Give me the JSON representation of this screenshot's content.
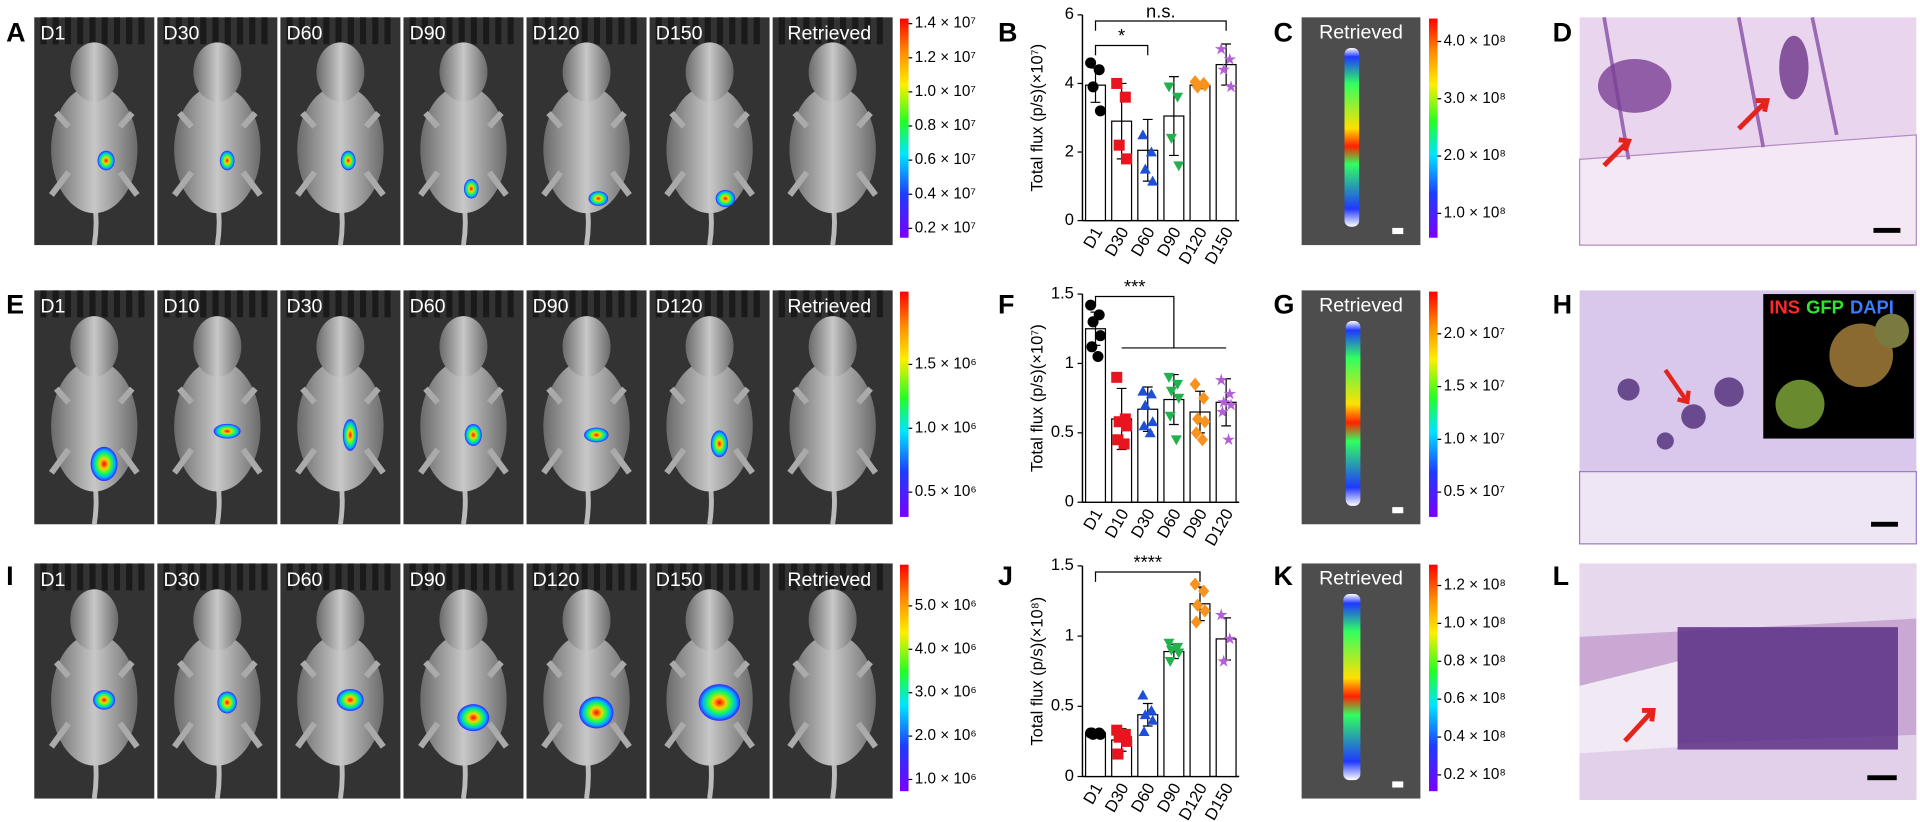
{
  "panel_letters": [
    "A",
    "B",
    "C",
    "D",
    "E",
    "F",
    "G",
    "H",
    "I",
    "J",
    "K",
    "L"
  ],
  "imaging_rows": [
    {
      "labels": [
        "D1",
        "D30",
        "D60",
        "D90",
        "D120",
        "D150",
        "Retrieved"
      ],
      "colorbar": {
        "clim": [
          1450000,
          14300000
        ],
        "ticks": [
          {
            "value": 14000000,
            "label": "1.4 × 10⁷"
          },
          {
            "value": 12000000,
            "label": "1.2 × 10⁷"
          },
          {
            "value": 10000000,
            "label": "1.0 × 10⁷"
          },
          {
            "value": 8000000,
            "label": "0.8 × 10⁷"
          },
          {
            "value": 6000000,
            "label": "0.6 × 10⁷"
          },
          {
            "value": 4000000,
            "label": "0.4 × 10⁷"
          },
          {
            "value": 2000000,
            "label": "0.2 × 10⁷"
          }
        ]
      }
    },
    {
      "labels": [
        "D1",
        "D10",
        "D30",
        "D60",
        "D90",
        "D120",
        "Retrieved"
      ],
      "colorbar": {
        "clim": [
          306000,
          2070000
        ],
        "ticks": [
          {
            "value": 1500000,
            "label": "1.5 × 10⁶"
          },
          {
            "value": 1000000,
            "label": "1.0 × 10⁶"
          },
          {
            "value": 500000,
            "label": "0.5 × 10⁶"
          }
        ]
      }
    },
    {
      "labels": [
        "D1",
        "D30",
        "D60",
        "D90",
        "D120",
        "D150",
        "Retrieved"
      ],
      "colorbar": {
        "clim": [
          730000,
          5950000
        ],
        "ticks": [
          {
            "value": 5000000,
            "label": "5.0 × 10⁶"
          },
          {
            "value": 4000000,
            "label": "4.0 × 10⁶"
          },
          {
            "value": 3000000,
            "label": "3.0 × 10⁶"
          },
          {
            "value": 2000000,
            "label": "2.0 × 10⁶"
          },
          {
            "value": 1000000,
            "label": "1.0 × 10⁶"
          }
        ]
      }
    }
  ],
  "retrieved_panels": [
    {
      "label": "Retrieved",
      "colorbar": {
        "clim": [
          57500000,
          440000000
        ],
        "ticks": [
          {
            "value": 400000000,
            "label": "4.0 × 10⁸"
          },
          {
            "value": 300000000,
            "label": "3.0 × 10⁸"
          },
          {
            "value": 200000000,
            "label": "2.0 × 10⁸"
          },
          {
            "value": 100000000,
            "label": "1.0 × 10⁸"
          }
        ]
      }
    },
    {
      "label": "Retrieved",
      "colorbar": {
        "clim": [
          2650000,
          24000000
        ],
        "ticks": [
          {
            "value": 20000000,
            "label": "2.0 × 10⁷"
          },
          {
            "value": 15000000,
            "label": "1.5 × 10⁷"
          },
          {
            "value": 10000000,
            "label": "1.0 × 10⁷"
          },
          {
            "value": 5000000,
            "label": "0.5 × 10⁷"
          }
        ]
      }
    },
    {
      "label": "Retrieved",
      "colorbar": {
        "clim": [
          11400000,
          131000000
        ],
        "ticks": [
          {
            "value": 120000000,
            "label": "1.2 × 10⁸"
          },
          {
            "value": 100000000,
            "label": "1.0 × 10⁸"
          },
          {
            "value": 80000000,
            "label": "0.8 × 10⁸"
          },
          {
            "value": 60000000,
            "label": "0.6 × 10⁸"
          },
          {
            "value": 40000000,
            "label": "0.4 × 10⁸"
          },
          {
            "value": 20000000,
            "label": "0.2 × 10⁸"
          }
        ]
      }
    }
  ],
  "inset_labels": [
    {
      "text": "INS",
      "color": "#ff2a2a"
    },
    {
      "text": "GFP",
      "color": "#2ee62e"
    },
    {
      "text": "DAPI",
      "color": "#3a7bff"
    }
  ],
  "chart_data": [
    {
      "type": "bar",
      "ylabel": "Total flux (p/s)(×10⁷)",
      "categories": [
        "D1",
        "D30",
        "D60",
        "D90",
        "D120",
        "D150"
      ],
      "values": [
        3.95,
        2.9,
        2.05,
        3.05,
        3.95,
        4.55
      ],
      "errors": [
        0.5,
        1.1,
        0.9,
        1.15,
        0.1,
        0.6
      ],
      "points": [
        [
          4.6,
          4.4,
          3.9,
          3.2
        ],
        [
          4.0,
          3.6,
          2.2,
          1.8
        ],
        [
          2.5,
          2.0,
          1.5,
          1.15
        ],
        [
          3.9,
          3.6,
          2.4,
          1.6
        ],
        [
          4.05,
          4.0,
          3.9,
          3.95
        ],
        [
          5.0,
          4.7,
          4.4,
          3.9
        ]
      ],
      "colors": [
        "#000000",
        "#e8141e",
        "#1f4fd6",
        "#22b14c",
        "#f7931e",
        "#b45fd8"
      ],
      "markers": [
        "circle",
        "square",
        "triangle",
        "triangle-down",
        "diamond",
        "star"
      ],
      "ylim": [
        0,
        6
      ],
      "yticks": [
        0,
        2,
        4,
        6
      ],
      "annotations": [
        {
          "text": "*",
          "from": 0,
          "to": [
            2,
            2
          ]
        },
        {
          "text": "n.s.",
          "from": 0,
          "to": [
            5,
            5
          ]
        }
      ]
    },
    {
      "type": "bar",
      "ylabel": "Total flux (p/s)(×10⁷)",
      "categories": [
        "D1",
        "D10",
        "D30",
        "D60",
        "D90",
        "D120"
      ],
      "values": [
        1.25,
        0.6,
        0.67,
        0.74,
        0.65,
        0.72
      ],
      "errors": [
        0.12,
        0.22,
        0.16,
        0.18,
        0.15,
        0.17
      ],
      "points": [
        [
          1.42,
          1.35,
          1.3,
          1.2,
          1.12,
          1.05
        ],
        [
          0.9,
          0.6,
          0.58,
          0.55,
          0.45,
          0.42
        ],
        [
          0.8,
          0.78,
          0.7,
          0.58,
          0.55,
          0.5
        ],
        [
          0.9,
          0.85,
          0.8,
          0.75,
          0.62,
          0.45
        ],
        [
          0.85,
          0.75,
          0.6,
          0.58,
          0.5,
          0.45
        ],
        [
          0.88,
          0.78,
          0.72,
          0.7,
          0.65,
          0.45
        ]
      ],
      "colors": [
        "#000000",
        "#e8141e",
        "#1f4fd6",
        "#22b14c",
        "#f7931e",
        "#b45fd8"
      ],
      "markers": [
        "circle",
        "square",
        "triangle",
        "triangle-down",
        "diamond",
        "star"
      ],
      "ylim": [
        0,
        1.5
      ],
      "yticks": [
        0,
        0.5,
        1,
        1.5
      ],
      "annotations": [
        {
          "text": "***",
          "from": 0,
          "to": [
            1,
            5
          ]
        }
      ]
    },
    {
      "type": "bar",
      "ylabel": "Total flux (p/s)(×10⁸)",
      "categories": [
        "D1",
        "D30",
        "D60",
        "D90",
        "D120",
        "D150"
      ],
      "values": [
        0.31,
        0.26,
        0.44,
        0.89,
        1.23,
        0.98
      ],
      "errors": [
        0.02,
        0.08,
        0.08,
        0.05,
        0.12,
        0.15
      ],
      "points": [
        [
          0.31,
          0.31,
          0.3,
          0.3,
          0.31
        ],
        [
          0.33,
          0.3,
          0.28,
          0.25,
          0.16
        ],
        [
          0.58,
          0.47,
          0.44,
          0.4,
          0.32
        ],
        [
          0.95,
          0.92,
          0.9,
          0.88,
          0.82
        ],
        [
          1.37,
          1.32,
          1.22,
          1.18,
          1.1
        ],
        [
          1.15,
          0.98,
          0.82
        ]
      ],
      "colors": [
        "#000000",
        "#e8141e",
        "#1f4fd6",
        "#22b14c",
        "#f7931e",
        "#b45fd8"
      ],
      "markers": [
        "circle",
        "square",
        "triangle",
        "triangle-down",
        "diamond",
        "star"
      ],
      "ylim": [
        0,
        1.5
      ],
      "yticks": [
        0,
        0.5,
        1,
        1.5
      ],
      "annotations": [
        {
          "text": "****",
          "from": 0,
          "to": [
            4,
            4
          ]
        }
      ]
    }
  ]
}
